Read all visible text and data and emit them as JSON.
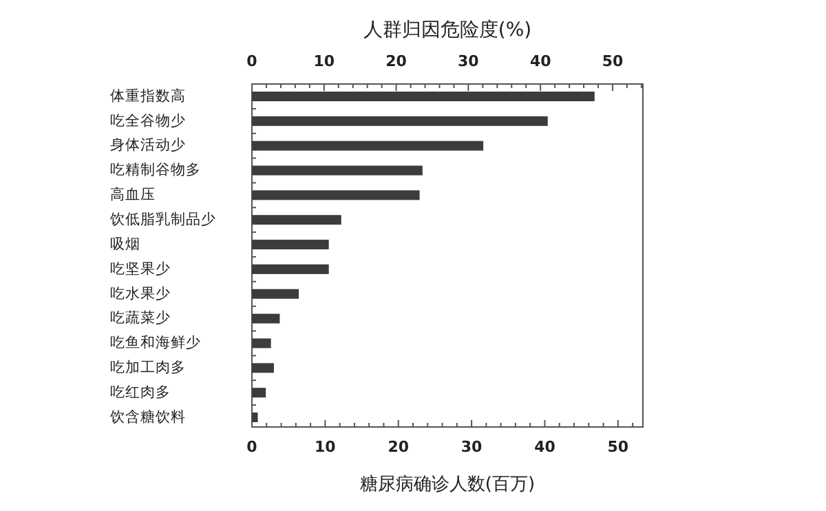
{
  "chart_data": {
    "type": "bar",
    "orientation": "horizontal",
    "categories": [
      "体重指数高",
      "吃全谷物少",
      "身体活动少",
      "吃精制谷物多",
      "高血压",
      "饮低脂乳制品少",
      "吸烟",
      "吃坚果少",
      "吃水果少",
      "吃蔬菜少",
      "吃鱼和海鲜少",
      "吃加工肉多",
      "吃红肉多",
      "饮含糖饮料"
    ],
    "values": [
      46.8,
      40.4,
      31.6,
      23.3,
      22.9,
      12.2,
      10.5,
      10.5,
      6.4,
      3.8,
      2.6,
      3.0,
      1.9,
      0.8
    ],
    "color": "#3c3c3c",
    "xlabel": "糖尿病确诊人数(百万)",
    "x2label": "人群归因危险度(%)",
    "xlim": [
      0,
      53.4
    ],
    "xticks": [
      0,
      {
        "value": 2,
        "label": null
      },
      {
        "value": 4,
        "label": null
      },
      {
        "value": 6,
        "label": null
      },
      {
        "value": 8,
        "label": null
      },
      10,
      {
        "value": 12,
        "label": null
      },
      {
        "value": 14,
        "label": null
      },
      {
        "value": 16,
        "label": null
      },
      {
        "value": 18,
        "label": null
      },
      20,
      {
        "value": 22,
        "label": null
      },
      {
        "value": 24,
        "label": null
      },
      {
        "value": 26,
        "label": null
      },
      {
        "value": 28,
        "label": null
      },
      30,
      {
        "value": 32,
        "label": null
      },
      {
        "value": 34,
        "label": null
      },
      {
        "value": 36,
        "label": null
      },
      {
        "value": 38,
        "label": null
      },
      40,
      {
        "value": 42,
        "label": null
      },
      {
        "value": 44,
        "label": null
      },
      {
        "value": 46,
        "label": null
      },
      {
        "value": 48,
        "label": null
      },
      50,
      {
        "value": 52,
        "label": null
      }
    ],
    "x2lim": [
      0,
      54.2
    ],
    "x2ticks": [
      0,
      {
        "value": 2,
        "label": null
      },
      {
        "value": 4,
        "label": null
      },
      {
        "value": 6,
        "label": null
      },
      {
        "value": 8,
        "label": null
      },
      10,
      {
        "value": 12,
        "label": null
      },
      {
        "value": 14,
        "label": null
      },
      {
        "value": 16,
        "label": null
      },
      {
        "value": 18,
        "label": null
      },
      20,
      {
        "value": 22,
        "label": null
      },
      {
        "value": 24,
        "label": null
      },
      {
        "value": 26,
        "label": null
      },
      {
        "value": 28,
        "label": null
      },
      30,
      {
        "value": 32,
        "label": null
      },
      {
        "value": 34,
        "label": null
      },
      {
        "value": 36,
        "label": null
      },
      {
        "value": 38,
        "label": null
      },
      40,
      {
        "value": 42,
        "label": null
      },
      {
        "value": 44,
        "label": null
      },
      {
        "value": 46,
        "label": null
      },
      {
        "value": 48,
        "label": null
      },
      50,
      {
        "value": 52,
        "label": null
      },
      {
        "value": 54,
        "label": null
      }
    ],
    "grid": false
  }
}
